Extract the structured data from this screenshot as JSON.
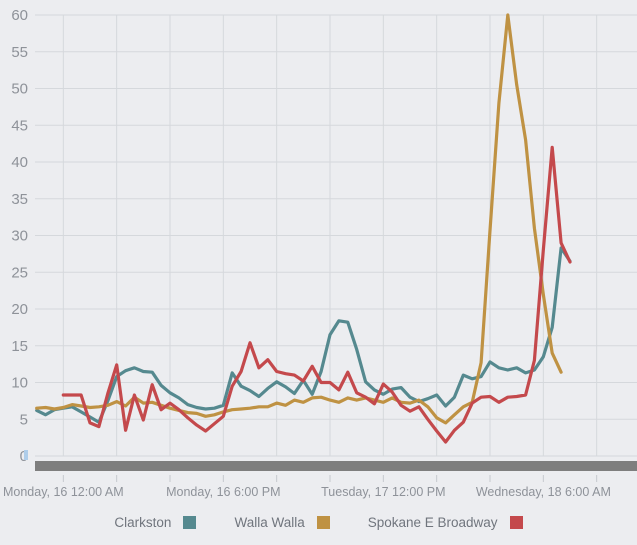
{
  "chart_data": {
    "type": "line",
    "title": "",
    "x_axis": {
      "unit": "hours",
      "points_every_hours": 1,
      "gridline_every_hours": 6,
      "axis_start_hours": -3.2,
      "axis_end_hours": 64.5,
      "tick_labels": [
        {
          "hours": 0,
          "label": "Monday, 16 12:00 AM"
        },
        {
          "hours": 18,
          "label": "Monday, 16 6:00 PM"
        },
        {
          "hours": 36,
          "label": "Tuesday, 17 12:00 PM"
        },
        {
          "hours": 54,
          "label": "Wednesday, 18 6:00 AM"
        }
      ]
    },
    "y_axis": {
      "min": 0,
      "max": 60,
      "step": 5,
      "tick_labels": [
        "0",
        "5",
        "10",
        "15",
        "20",
        "25",
        "30",
        "35",
        "40",
        "45",
        "50",
        "55",
        "60"
      ]
    },
    "grid": "on",
    "legend_position": "bottom",
    "series": [
      {
        "name": "Clarkston",
        "color": "#55898f",
        "start_hours": -3,
        "values": [
          6.2,
          5.6,
          6.3,
          6.5,
          6.7,
          6.0,
          5.3,
          4.6,
          7.5,
          10.8,
          11.6,
          12.0,
          11.5,
          11.4,
          9.6,
          8.6,
          7.9,
          7.0,
          6.6,
          6.4,
          6.5,
          6.9,
          11.3,
          9.5,
          8.9,
          8.1,
          9.2,
          10.1,
          9.4,
          8.5,
          10.3,
          8.4,
          11.5,
          16.5,
          18.4,
          18.2,
          14.5,
          10.1,
          9.0,
          8.4,
          9.1,
          9.3,
          8.0,
          7.4,
          7.8,
          8.3,
          6.8,
          8.0,
          11.0,
          10.5,
          10.8,
          12.8,
          12.0,
          11.7,
          12.0,
          11.3,
          11.7,
          13.5,
          17.5,
          28.3,
          26.5
        ]
      },
      {
        "name": "Walla Walla",
        "color": "#bf9243",
        "start_hours": -3,
        "values": [
          6.5,
          6.6,
          6.4,
          6.6,
          7.0,
          6.8,
          6.6,
          6.7,
          6.9,
          7.4,
          6.8,
          8.0,
          7.2,
          7.3,
          6.9,
          6.5,
          6.2,
          5.9,
          5.8,
          5.4,
          5.6,
          6.0,
          6.3,
          6.4,
          6.5,
          6.7,
          6.7,
          7.2,
          6.9,
          7.6,
          7.3,
          7.9,
          8.0,
          7.6,
          7.3,
          7.9,
          7.6,
          7.9,
          7.6,
          7.3,
          7.9,
          7.3,
          7.2,
          7.6,
          6.7,
          5.2,
          4.5,
          5.6,
          6.7,
          7.3,
          12.7,
          30.7,
          48.0,
          60.0,
          50.5,
          43.0,
          31.0,
          22.0,
          14.0,
          11.4
        ]
      },
      {
        "name": "Spokane E Broadway",
        "color": "#c4494c",
        "start_hours": 0,
        "values": [
          8.3,
          8.3,
          8.3,
          4.5,
          4.0,
          8.5,
          12.4,
          3.5,
          8.3,
          4.9,
          9.7,
          6.3,
          7.2,
          6.3,
          5.2,
          4.2,
          3.4,
          4.4,
          5.4,
          9.5,
          11.5,
          15.4,
          12.0,
          13.1,
          11.5,
          11.2,
          11.0,
          10.2,
          12.2,
          10.0,
          10.0,
          9.0,
          11.4,
          8.6,
          8.0,
          7.1,
          9.8,
          8.7,
          6.9,
          6.1,
          6.7,
          5.0,
          3.4,
          1.9,
          3.5,
          4.6,
          7.2,
          8.0,
          8.1,
          7.3,
          8.0,
          8.1,
          8.3,
          13.0,
          28.0,
          42.0,
          29.0,
          26.4
        ]
      }
    ]
  },
  "legend": {
    "items": [
      {
        "label": "Clarkston"
      },
      {
        "label": "Walla Walla"
      },
      {
        "label": "Spokane E Broadway"
      }
    ]
  },
  "colors": {
    "background": "#ecedf0",
    "gridline": "#d5d8dc",
    "axis_text": "#8e9299",
    "legend_text": "#70757d",
    "scrollbar": "#7e7e7e",
    "axis_tick": "#c6c9ce"
  }
}
